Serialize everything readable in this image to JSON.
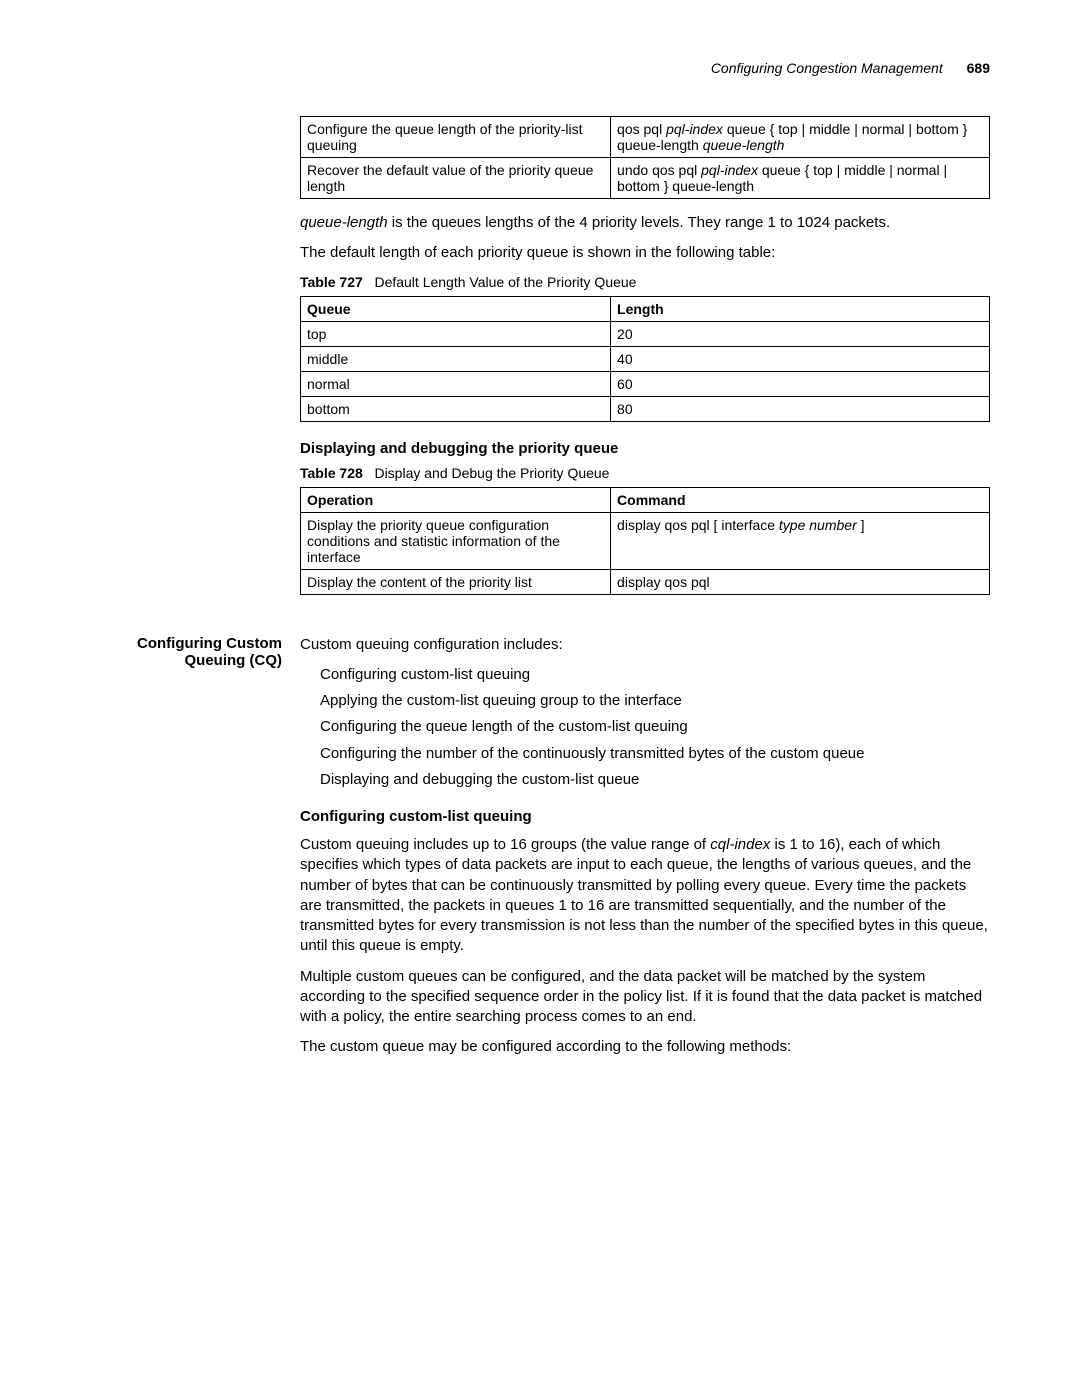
{
  "header": {
    "title": "Configuring Congestion Management",
    "page": "689"
  },
  "table726": {
    "rows": [
      {
        "op": "Configure the queue length of the priority-list queuing",
        "cmd_parts": [
          {
            "t": "kw",
            "v": "qos pql"
          },
          {
            "t": "arg",
            "v": "pql-index"
          },
          {
            "t": "kw",
            "v": "queue { top | middle | normal | bottom } queue-length"
          },
          {
            "t": "arg",
            "v": "queue-length"
          }
        ]
      },
      {
        "op": "Recover the default value of the priority queue length",
        "cmd_parts": [
          {
            "t": "kw",
            "v": "undo qos pql"
          },
          {
            "t": "arg",
            "v": "pql-index"
          },
          {
            "t": "kw",
            "v": "queue { top | middle | normal | bottom } queue-length"
          }
        ]
      }
    ]
  },
  "para1_pre": "queue-length",
  "para1_post": " is the queues lengths of the 4 priority levels. They range 1 to 1024 packets.",
  "para2": "The default length of each priority queue is shown in the following table:",
  "table727": {
    "label": "Table 727",
    "caption": "Default Length Value of the Priority Queue",
    "headers": [
      "Queue",
      "Length"
    ],
    "rows": [
      [
        "top",
        "20"
      ],
      [
        "middle",
        "40"
      ],
      [
        "normal",
        "60"
      ],
      [
        "bottom",
        "80"
      ]
    ]
  },
  "h3a": "Displaying and debugging the priority queue",
  "table728": {
    "label": "Table 728",
    "caption": "Display and Debug the Priority Queue",
    "headers": [
      "Operation",
      "Command"
    ],
    "rows": [
      {
        "op": "Display the priority queue configuration conditions and statistic information of the interface",
        "cmd_parts": [
          {
            "t": "kw",
            "v": "display qos pql [ interface"
          },
          {
            "t": "arg",
            "v": "type number"
          },
          {
            "t": "kw",
            "v": "]"
          }
        ]
      },
      {
        "op": "Display the content of the priority list",
        "cmd_parts": [
          {
            "t": "kw",
            "v": "display qos pql"
          }
        ]
      }
    ]
  },
  "side_cq": "Configuring Custom Queuing (CQ)",
  "cq_intro": "Custom queuing configuration includes:",
  "cq_items": [
    "Configuring custom-list queuing",
    "Applying the custom-list queuing group to the interface",
    "Configuring the queue length of the custom-list queuing",
    "Configuring the number of the continuously transmitted bytes of the custom queue",
    "Displaying and debugging the custom-list queue"
  ],
  "h3b": "Configuring custom-list queuing",
  "cq_p1_a": "Custom queuing includes up to 16 groups (the value range of ",
  "cq_p1_italic": "cql-index",
  "cq_p1_b": " is 1 to 16), each of which specifies which types of data packets are input to each queue, the lengths of various queues, and the number of bytes that can be continuously transmitted by polling every queue. Every time the packets are transmitted, the packets in queues 1 to 16 are transmitted sequentially, and the number of the transmitted bytes for every transmission is not less than the number of the specified bytes in this queue, until this queue is empty.",
  "cq_p2": "Multiple custom queues can be configured, and the data packet will be matched by the system according to the specified sequence order in the policy list. If it is found that the data packet is matched with a policy, the entire searching process comes to an end.",
  "cq_p3": "The custom queue may be configured according to the following methods:"
}
